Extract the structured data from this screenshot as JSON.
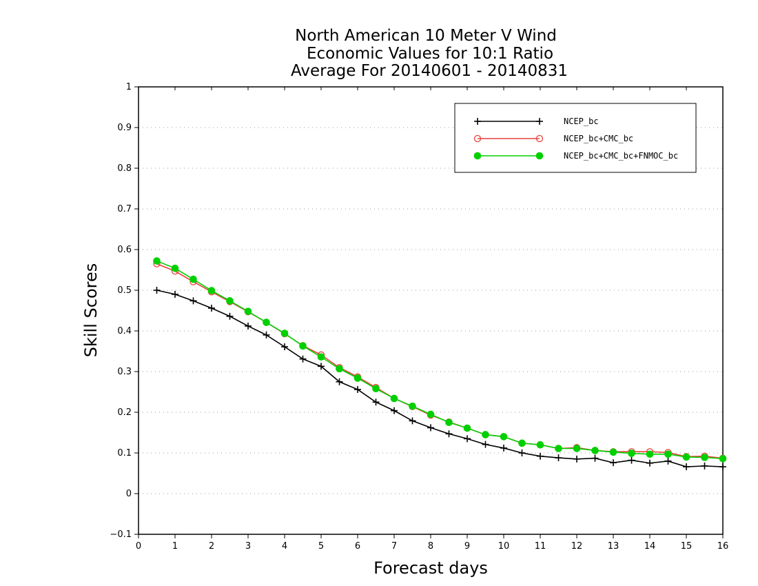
{
  "chart_data": {
    "type": "line",
    "title_lines": [
      "North American 10 Meter V Wind",
      "Economic Values for 10:1 Ratio",
      "Average For 20140601 - 20140831"
    ],
    "xlabel": "Forecast days",
    "ylabel": "Skill Scores",
    "xlim": [
      0,
      16
    ],
    "ylim": [
      -0.1,
      1
    ],
    "xticks": [
      "0",
      "1",
      "2",
      "3",
      "4",
      "5",
      "6",
      "7",
      "8",
      "9",
      "10",
      "11",
      "12",
      "13",
      "14",
      "15",
      "16"
    ],
    "yticks": [
      "−0.1",
      "0",
      "0.1",
      "0.2",
      "0.3",
      "0.4",
      "0.5",
      "0.6",
      "0.7",
      "0.8",
      "0.9",
      "1"
    ],
    "grid": "horizontal dotted",
    "legend_position": "top-right",
    "x": [
      0.5,
      1,
      1.5,
      2,
      2.5,
      3,
      3.5,
      4,
      4.5,
      5,
      5.5,
      6,
      6.5,
      7,
      7.5,
      8,
      8.5,
      9,
      9.5,
      10,
      10.5,
      11,
      11.5,
      12,
      12.5,
      13,
      13.5,
      14,
      14.5,
      15,
      15.5,
      16
    ],
    "series": [
      {
        "name": "NCEP_bc",
        "color": "#000000",
        "marker": "plus",
        "values": [
          0.5,
          0.49,
          0.474,
          0.456,
          0.436,
          0.412,
          0.39,
          0.361,
          0.331,
          0.313,
          0.275,
          0.256,
          0.225,
          0.204,
          0.179,
          0.162,
          0.147,
          0.135,
          0.121,
          0.112,
          0.1,
          0.092,
          0.088,
          0.085,
          0.087,
          0.076,
          0.082,
          0.075,
          0.08,
          0.066,
          0.068,
          0.066
        ]
      },
      {
        "name": "NCEP_bc+CMC_bc",
        "color": "#e8413c",
        "marker": "open-circle",
        "values": [
          0.565,
          0.547,
          0.521,
          0.496,
          0.472,
          0.447,
          0.421,
          0.393,
          0.364,
          0.341,
          0.31,
          0.287,
          0.261,
          0.234,
          0.214,
          0.193,
          0.176,
          0.161,
          0.145,
          0.14,
          0.124,
          0.12,
          0.111,
          0.113,
          0.106,
          0.103,
          0.103,
          0.103,
          0.101,
          0.091,
          0.092,
          0.087
        ]
      },
      {
        "name": "NCEP_bc+CMC_bc+FNMOC_bc",
        "color": "#00d000",
        "marker": "filled-circle",
        "values": [
          0.572,
          0.554,
          0.527,
          0.499,
          0.474,
          0.448,
          0.421,
          0.394,
          0.363,
          0.336,
          0.307,
          0.284,
          0.258,
          0.234,
          0.215,
          0.195,
          0.175,
          0.161,
          0.145,
          0.14,
          0.124,
          0.12,
          0.111,
          0.111,
          0.106,
          0.102,
          0.099,
          0.097,
          0.097,
          0.09,
          0.089,
          0.086
        ]
      }
    ]
  }
}
